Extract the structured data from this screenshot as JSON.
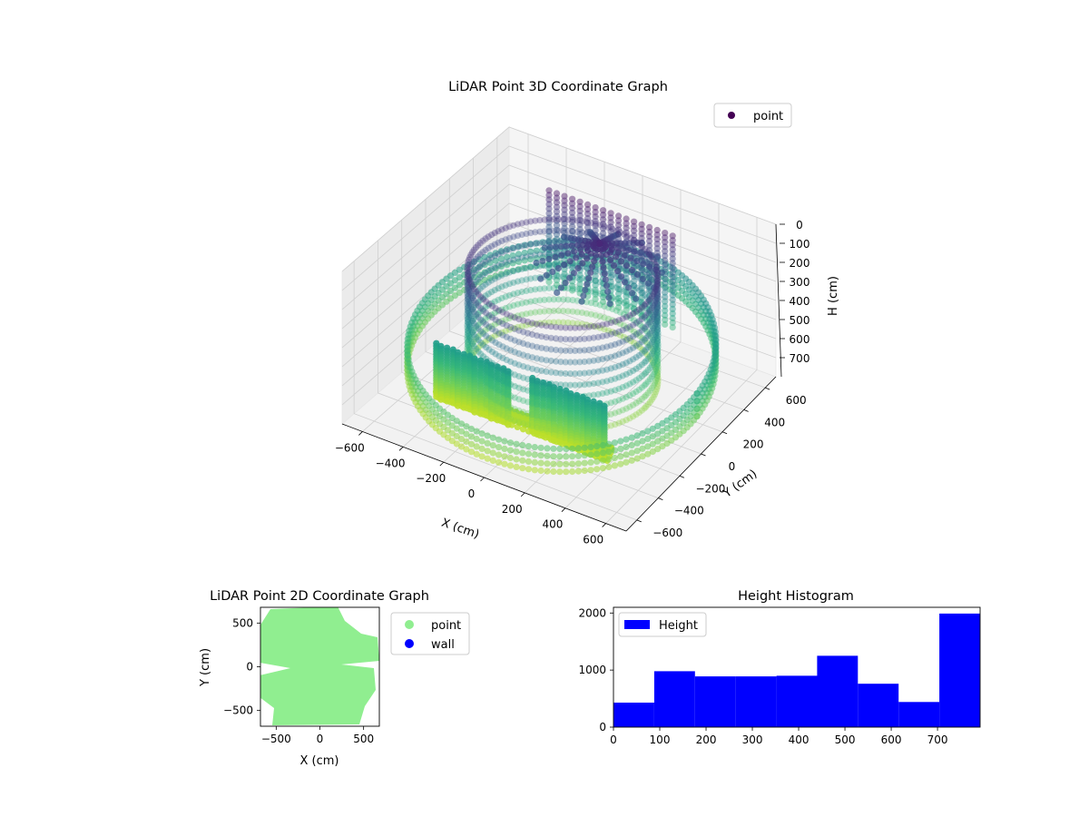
{
  "chart_data": [
    {
      "type": "scatter",
      "projection": "3d",
      "title": "LiDAR Point 3D Coordinate Graph",
      "xlabel": "X (cm)",
      "ylabel": "Y (cm)",
      "zlabel": "H (cm)",
      "xlim": [
        -700,
        700
      ],
      "ylim": [
        -700,
        700
      ],
      "zlim": [
        800,
        0
      ],
      "z_axis_inverted": true,
      "colormap": "viridis",
      "x_ticks": [
        "−600",
        "−400",
        "−200",
        "0",
        "200",
        "400",
        "600"
      ],
      "y_ticks": [
        "−600",
        "−400",
        "−200",
        "0",
        "200",
        "400",
        "600"
      ],
      "z_ticks": [
        "0",
        "100",
        "200",
        "300",
        "400",
        "500",
        "600",
        "700"
      ],
      "legend": {
        "position": "top-right",
        "entries": [
          {
            "label": "point",
            "color": "#440154"
          }
        ]
      },
      "grid": true,
      "structures": [
        {
          "kind": "outer-ring",
          "radius": 680,
          "h_range": [
            360,
            700
          ]
        },
        {
          "kind": "inner-wall",
          "radius": 420,
          "h_range": [
            60,
            700
          ]
        },
        {
          "kind": "front-posts",
          "x_range": [
            -420,
            420
          ],
          "y": -380,
          "h_range": [
            430,
            700
          ]
        },
        {
          "kind": "back-posts",
          "x_range": [
            -300,
            300
          ],
          "y": 380,
          "h_range": [
            0,
            520
          ]
        },
        {
          "kind": "ceiling-cluster",
          "x": 40,
          "y": 250,
          "h": 120
        }
      ]
    },
    {
      "type": "scatter",
      "title": "LiDAR Point 2D Coordinate Graph",
      "xlabel": "X (cm)",
      "ylabel": "Y (cm)",
      "xlim": [
        -680,
        680
      ],
      "ylim": [
        -680,
        680
      ],
      "x_ticks": [
        "−500",
        "0",
        "500"
      ],
      "y_ticks": [
        "−500",
        "0",
        "500"
      ],
      "legend": {
        "position": "outside-right",
        "entries": [
          {
            "label": "point",
            "color": "#90ee90"
          },
          {
            "label": "wall",
            "color": "#0000ff"
          }
        ]
      }
    },
    {
      "type": "bar",
      "title": "Height Histogram",
      "series_label": "Height",
      "bar_color": "#0000ff",
      "bin_edges": [
        0,
        88,
        176,
        264,
        352,
        440,
        528,
        616,
        704,
        792
      ],
      "values": [
        430,
        980,
        890,
        890,
        900,
        1250,
        760,
        440,
        1990
      ],
      "xlim": [
        0,
        792
      ],
      "ylim": [
        0,
        2100
      ],
      "x_ticks": [
        0,
        100,
        200,
        300,
        400,
        500,
        600,
        700
      ],
      "y_ticks": [
        0,
        1000,
        2000
      ],
      "legend": {
        "position": "top-left",
        "entries": [
          {
            "label": "Height",
            "color": "#0000ff"
          }
        ]
      }
    }
  ]
}
